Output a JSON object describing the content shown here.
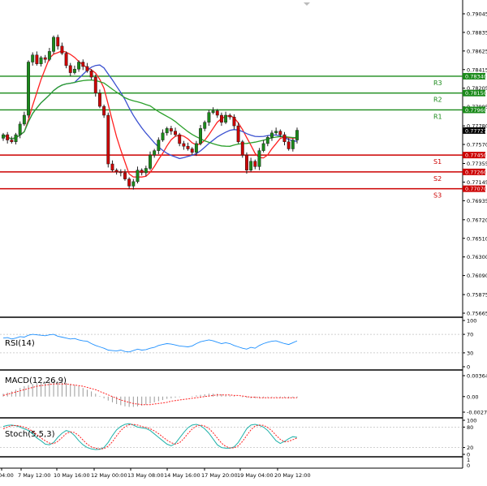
{
  "chart_data": [
    {
      "type": "candlestick",
      "panel": "price",
      "y_ticks": [
        "0.79045",
        "0.78835",
        "0.78625",
        "0.78415",
        "0.78205",
        "0.77995",
        "0.77780",
        "0.77570",
        "0.77355",
        "0.77145",
        "0.76935",
        "0.76720",
        "0.76510",
        "0.76300",
        "0.76090",
        "0.75875",
        "0.75665"
      ],
      "ylim": [
        0.75665,
        0.79045
      ],
      "current_price": "0.77727",
      "levels": [
        {
          "name": "R3",
          "value": 0.7834,
          "label": "0.78340",
          "color": "#1a8a1a"
        },
        {
          "name": "R2",
          "value": 0.7815,
          "label": "0.78150",
          "color": "#1a8a1a"
        },
        {
          "name": "R1",
          "value": 0.7796,
          "label": "0.77960",
          "color": "#1a8a1a"
        },
        {
          "name": "S1",
          "value": 0.7745,
          "label": "0.77450",
          "color": "#cc0000"
        },
        {
          "name": "S2",
          "value": 0.7726,
          "label": "0.77260",
          "color": "#cc0000"
        },
        {
          "name": "S3",
          "value": 0.7707,
          "label": "0.77070",
          "color": "#cc0000"
        }
      ],
      "closes": [
        0.7768,
        0.7762,
        0.776,
        0.7768,
        0.778,
        0.779,
        0.785,
        0.7858,
        0.7848,
        0.7855,
        0.7853,
        0.7862,
        0.7878,
        0.7868,
        0.786,
        0.7846,
        0.7838,
        0.7842,
        0.785,
        0.7845,
        0.784,
        0.7833,
        0.7815,
        0.78,
        0.779,
        0.7735,
        0.7728,
        0.7726,
        0.7725,
        0.7718,
        0.771,
        0.7715,
        0.7728,
        0.7725,
        0.773,
        0.7745,
        0.775,
        0.7762,
        0.777,
        0.7775,
        0.7772,
        0.7768,
        0.7758,
        0.7755,
        0.7752,
        0.7748,
        0.7758,
        0.7775,
        0.7782,
        0.7793,
        0.7795,
        0.779,
        0.7782,
        0.779,
        0.7788,
        0.7778,
        0.776,
        0.7745,
        0.7728,
        0.7738,
        0.7732,
        0.775,
        0.7758,
        0.7765,
        0.777,
        0.7772,
        0.7768,
        0.776,
        0.7752,
        0.7762,
        0.7773
      ],
      "indicators": [
        "moving average (red)",
        "moving average (blue)",
        "moving average (green)"
      ]
    },
    {
      "type": "line",
      "panel": "RSI",
      "title": "RSI(14)",
      "y_ticks": [
        "100",
        "70",
        "30",
        "0"
      ],
      "ylim": [
        0,
        100
      ],
      "values": [
        62,
        63,
        60,
        62,
        65,
        64,
        68,
        70,
        69,
        68,
        67,
        69,
        70,
        66,
        64,
        62,
        60,
        61,
        58,
        56,
        55,
        50,
        46,
        43,
        40,
        36,
        35,
        34,
        36,
        33,
        32,
        35,
        38,
        36,
        37,
        40,
        42,
        46,
        48,
        50,
        49,
        47,
        45,
        44,
        43,
        45,
        50,
        54,
        56,
        58,
        56,
        53,
        50,
        52,
        50,
        46,
        43,
        40,
        38,
        42,
        40,
        46,
        50,
        53,
        55,
        56,
        53,
        50,
        48,
        52,
        56
      ]
    },
    {
      "type": "bar+line",
      "panel": "MACD",
      "title": "MACD(12,26,9)",
      "y_ticks": [
        "0.003643",
        "0.00",
        "-0.002716"
      ],
      "ylim": [
        -0.002716,
        0.003643
      ],
      "histogram": [
        0.0005,
        0.0007,
        0.0009,
        0.0012,
        0.0015,
        0.0018,
        0.002,
        0.0022,
        0.0024,
        0.0025,
        0.0026,
        0.0027,
        0.0027,
        0.0026,
        0.0025,
        0.0024,
        0.0022,
        0.002,
        0.0018,
        0.0015,
        0.0012,
        0.0009,
        0.0005,
        0.0001,
        -0.0003,
        -0.0007,
        -0.001,
        -0.0013,
        -0.0015,
        -0.0017,
        -0.0018,
        -0.0018,
        -0.0017,
        -0.0016,
        -0.0014,
        -0.0012,
        -0.001,
        -0.0008,
        -0.0006,
        -0.0004,
        -0.0003,
        -0.0002,
        -0.0001,
        0.0,
        0.0,
        0.0001,
        0.0002,
        0.0003,
        0.0004,
        0.0005,
        0.0005,
        0.0005,
        0.0004,
        0.0003,
        0.0002,
        0.0001,
        0.0,
        -0.0001,
        -0.0002,
        -0.0003,
        -0.0003,
        -0.0002,
        -0.0002,
        -0.0001,
        -0.0001,
        -0.0001,
        -0.0002,
        -0.0002,
        -0.0003,
        -0.0002,
        -0.0002
      ],
      "signal": [
        0.0002,
        0.0004,
        0.0006,
        0.0008,
        0.001,
        0.0012,
        0.0014,
        0.0016,
        0.0018,
        0.0019,
        0.002,
        0.0021,
        0.0022,
        0.0022,
        0.0022,
        0.0022,
        0.0021,
        0.002,
        0.0019,
        0.0018,
        0.0016,
        0.0014,
        0.0012,
        0.0009,
        0.0006,
        0.0003,
        0.0,
        -0.0003,
        -0.0006,
        -0.0008,
        -0.001,
        -0.0012,
        -0.0013,
        -0.0014,
        -0.0014,
        -0.0014,
        -0.0013,
        -0.0012,
        -0.0011,
        -0.001,
        -0.0008,
        -0.0007,
        -0.0006,
        -0.0005,
        -0.0004,
        -0.0003,
        -0.0002,
        -0.0001,
        0.0,
        0.0001,
        0.0002,
        0.0003,
        0.0003,
        0.0003,
        0.0003,
        0.0002,
        0.0002,
        0.0001,
        0.0,
        -0.0001,
        -0.0001,
        -0.0002,
        -0.0002,
        -0.0002,
        -0.0002,
        -0.0002,
        -0.0002,
        -0.0002,
        -0.0002,
        -0.0002,
        -0.0002
      ]
    },
    {
      "type": "line",
      "panel": "Stochastic",
      "title": "Stoch(5,5,3)",
      "y_ticks": [
        "100",
        "80",
        "20",
        "0"
      ],
      "ylim": [
        0,
        100
      ],
      "main": [
        82,
        85,
        86,
        84,
        80,
        75,
        70,
        60,
        48,
        40,
        30,
        28,
        35,
        50,
        62,
        70,
        66,
        55,
        40,
        28,
        20,
        16,
        14,
        15,
        20,
        35,
        55,
        72,
        82,
        88,
        90,
        86,
        80,
        78,
        76,
        70,
        60,
        50,
        40,
        30,
        25,
        32,
        48,
        64,
        78,
        86,
        88,
        84,
        75,
        62,
        45,
        28,
        20,
        18,
        18,
        22,
        35,
        55,
        75,
        86,
        88,
        85,
        80,
        70,
        55,
        40,
        32,
        38,
        46,
        52,
        50
      ],
      "signal": [
        75,
        80,
        84,
        85,
        83,
        80,
        75,
        68,
        58,
        48,
        40,
        33,
        31,
        38,
        49,
        61,
        66,
        64,
        55,
        42,
        30,
        22,
        18,
        16,
        17,
        24,
        37,
        54,
        70,
        81,
        87,
        88,
        86,
        82,
        79,
        75,
        69,
        61,
        51,
        42,
        34,
        30,
        34,
        46,
        61,
        74,
        83,
        86,
        83,
        76,
        63,
        48,
        33,
        23,
        19,
        19,
        25,
        38,
        55,
        72,
        83,
        86,
        85,
        79,
        69,
        56,
        44,
        37,
        38,
        43,
        48
      ]
    }
  ],
  "x_labels": [
    "04:00",
    "7 May 12:00",
    "10 May 16:00",
    "12 May 00:00",
    "13 May 08:00",
    "14 May 16:00",
    "17 May 20:00",
    "19 May 04:00",
    "20 May 12:00"
  ],
  "colors": {
    "support": "#cc0000",
    "resistance": "#1a8a1a",
    "bull_candle": "#1a8a1a",
    "bear_candle": "#cc0000",
    "rsi_line": "#1e90ff",
    "macd_hist": "#9a9a9a",
    "macd_signal": "#ff2020",
    "stoch_main": "#20b2aa",
    "stoch_signal": "#ff2020"
  }
}
